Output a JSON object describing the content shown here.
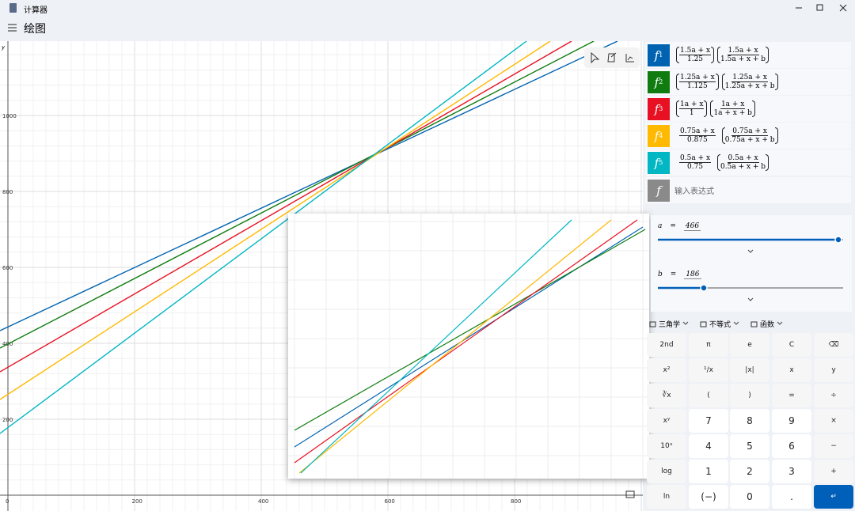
{
  "window": {
    "title": "计算器"
  },
  "header": {
    "title": "绘图"
  },
  "graph": {
    "y_axis_label": "y",
    "x_ticks": [
      0,
      200,
      400,
      600,
      800
    ],
    "y_ticks": [
      200,
      400,
      600,
      800,
      1000
    ]
  },
  "functions": [
    {
      "name": "f",
      "index": 1,
      "color": "#0063b1",
      "terms": [
        {
          "num": "1.5a + x",
          "den": "1.25",
          "parens": true
        },
        {
          "num": "1.5a + x",
          "den": "1.5a + x + b",
          "parens": true
        }
      ]
    },
    {
      "name": "f",
      "index": 2,
      "color": "#107c10",
      "terms": [
        {
          "num": "1.25a + x",
          "den": "1.125",
          "parens": true
        },
        {
          "num": "1.25a + x",
          "den": "1.25a + x + b",
          "parens": true
        }
      ]
    },
    {
      "name": "f",
      "index": 3,
      "color": "#e81123",
      "terms": [
        {
          "num": "1a + x",
          "den": "1",
          "parens": true
        },
        {
          "num": "1a + x",
          "den": "1a + x + b",
          "parens": true
        }
      ]
    },
    {
      "name": "f",
      "index": 4,
      "color": "#ffb900",
      "terms": [
        {
          "num": "0.75a + x",
          "den": "0.875",
          "parens": false
        },
        {
          "num": "0.75a + x",
          "den": "0.75a + x + b",
          "parens": true
        }
      ]
    },
    {
      "name": "f",
      "index": 5,
      "color": "#00b7c3",
      "terms": [
        {
          "num": "0.5a + x",
          "den": "0.75",
          "parens": false
        },
        {
          "num": "0.5a + x",
          "den": "0.5a + x + b",
          "parens": true
        }
      ]
    }
  ],
  "new_function": {
    "name": "f",
    "placeholder": "输入表达式"
  },
  "variables": [
    {
      "name": "a",
      "sign": "=",
      "value": 466
    },
    {
      "name": "b",
      "sign": "=",
      "value": 186
    }
  ],
  "toolbar": [
    "三角学",
    "不等式",
    "函数"
  ],
  "keys": [
    "2nd",
    "π",
    "e",
    "C",
    "⌫",
    "x²",
    "¹/x",
    "|x|",
    "x",
    "y",
    "∛x",
    "(",
    ")",
    "=",
    "÷",
    "xʸ",
    "7",
    "8",
    "9",
    "×",
    "10ˣ",
    "4",
    "5",
    "6",
    "−",
    "log",
    "1",
    "2",
    "3",
    "+",
    "ln",
    "(−)",
    "0",
    ".",
    "↵"
  ]
}
